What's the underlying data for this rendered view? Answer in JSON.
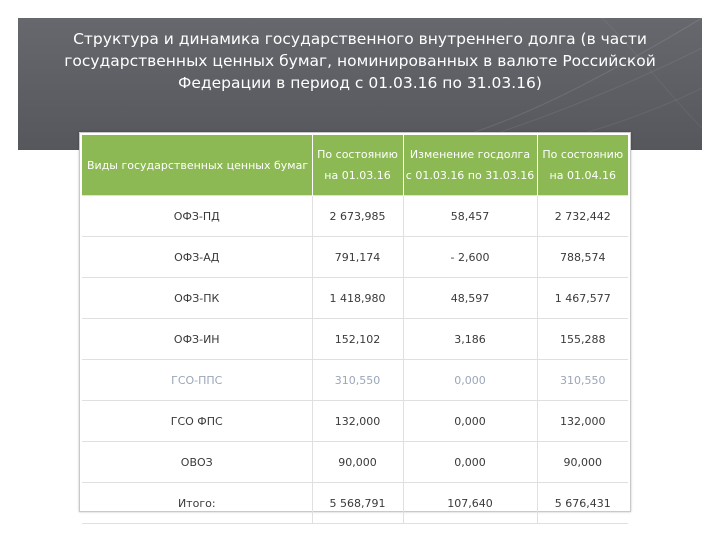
{
  "slide": {
    "title": "Структура и динамика государственного внутреннего долга (в части\nгосударственных ценных бумаг, номинированных в валюте Российской\nФедерации в период с 01.03.16 по 31.03.16)"
  },
  "table": {
    "headers": [
      {
        "line1": "Виды государственных ценных бумаг",
        "line2": ""
      },
      {
        "line1": "По состоянию",
        "line2": "на 01.03.16"
      },
      {
        "line1": "Изменение госдолга",
        "line2": "с 01.03.16 по 31.03.16"
      },
      {
        "line1": "По состоянию",
        "line2": "на 01.04.16"
      }
    ],
    "rows": [
      {
        "cells": [
          "ОФЗ-ПД",
          "2 673,985",
          "58,457",
          "2 732,442"
        ],
        "faint": false
      },
      {
        "cells": [
          "ОФЗ-АД",
          "791,174",
          "- 2,600",
          "788,574"
        ],
        "faint": false
      },
      {
        "cells": [
          "ОФЗ-ПК",
          "1 418,980",
          "48,597",
          "1 467,577"
        ],
        "faint": false
      },
      {
        "cells": [
          "ОФЗ-ИН",
          "152,102",
          "3,186",
          "155,288"
        ],
        "faint": false
      },
      {
        "cells": [
          "ГСО-ППС",
          "310,550",
          "0,000",
          "310,550"
        ],
        "faint": true
      },
      {
        "cells": [
          "ГСО ФПС",
          "132,000",
          "0,000",
          "132,000"
        ],
        "faint": false
      },
      {
        "cells": [
          "ОВОЗ",
          "90,000",
          "0,000",
          "90,000"
        ],
        "faint": false
      },
      {
        "cells": [
          "Итого:",
          "5 568,791",
          "107,640",
          "5 676,431"
        ],
        "faint": false
      }
    ]
  },
  "colors": {
    "header_band": "#5b5d62",
    "table_header": "#8cb953",
    "title_text": "#ffffff"
  }
}
